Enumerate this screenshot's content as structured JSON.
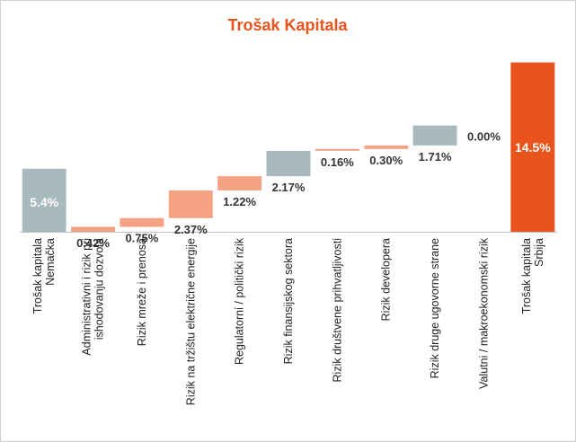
{
  "chart_data": {
    "type": "waterfall",
    "title": "Trošak Kapitala",
    "categories": [
      [
        "Trošak kapitala",
        "Nemačka"
      ],
      [
        "Administrativni i rizik pri",
        "ishodovanju dozvola"
      ],
      [
        "Rizik mreže i prenosa"
      ],
      [
        "Rizik na tržištu električne energije"
      ],
      [
        "Regulatorni / politički rizik"
      ],
      [
        "Rizik finansijskog sektora"
      ],
      [
        "Rizik društvene prihvatljivosti"
      ],
      [
        "Rizik developera"
      ],
      [
        "Rizik druge ugovorne strane"
      ],
      [
        "Valutni / makroekonomski rizik"
      ],
      [
        "Trošak kapitala",
        "Srbija"
      ]
    ],
    "values": [
      5.4,
      0.42,
      0.75,
      2.37,
      1.22,
      2.17,
      0.16,
      0.3,
      1.71,
      0.0,
      14.5
    ],
    "value_labels": [
      "5.4%",
      "0.42%",
      "0.75%",
      "2.37%",
      "1.22%",
      "2.17%",
      "0.16%",
      "0.30%",
      "1.71%",
      "0.00%",
      "14.5%"
    ],
    "kinds": [
      "total",
      "step",
      "step",
      "step",
      "step",
      "step",
      "step",
      "step",
      "step",
      "step",
      "total"
    ],
    "colors": [
      "#a9babf",
      "#f4a283",
      "#f4a283",
      "#f4a283",
      "#f4a283",
      "#a9babf",
      "#f4a283",
      "#f4a283",
      "#a9babf",
      "#f4a283",
      "#e8541c"
    ],
    "ylim": [
      0,
      15
    ]
  }
}
